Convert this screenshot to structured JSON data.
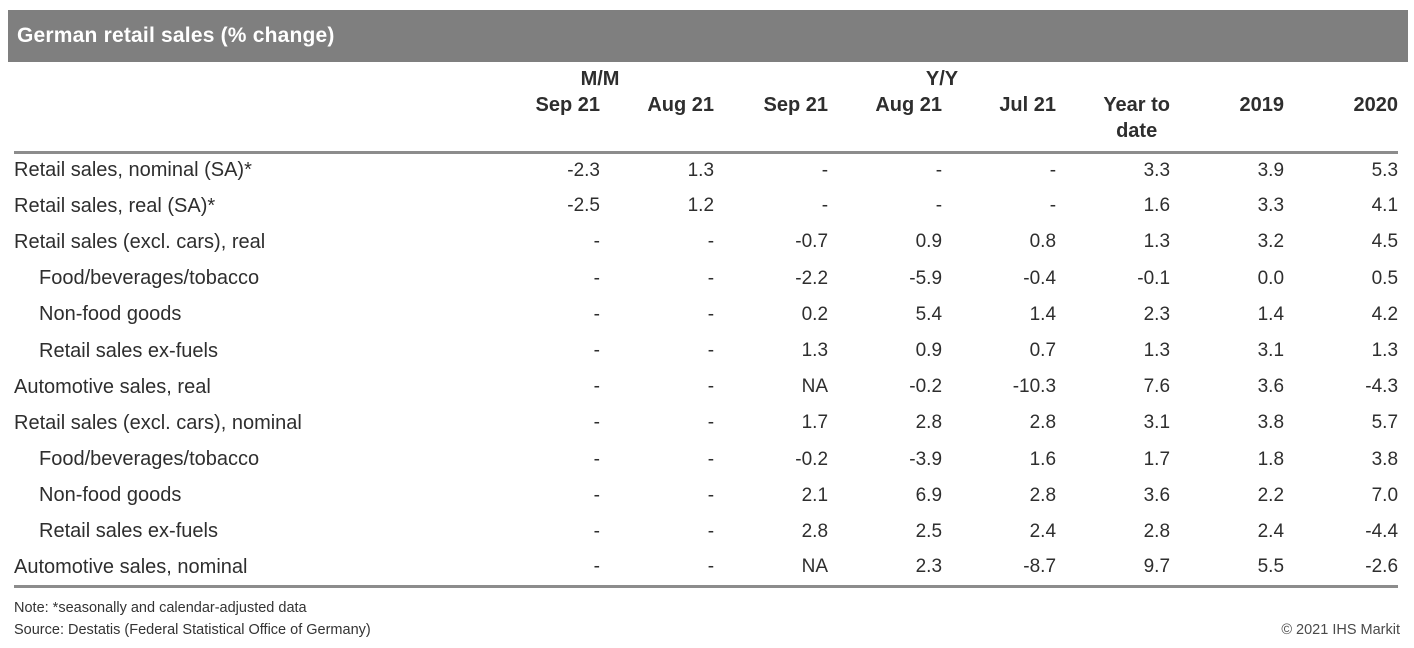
{
  "title": "German retail sales (% change)",
  "colors": {
    "title_bar_bg": "#7f7f7f",
    "title_text": "#ffffff",
    "rule": "#8c8c8c",
    "body_text": "#2e2e2e"
  },
  "chart_data": {
    "type": "table",
    "title": "German retail sales (% change)",
    "column_groups": [
      {
        "label": "M/M",
        "span": 2
      },
      {
        "label": "Y/Y",
        "span": 4
      }
    ],
    "columns": [
      {
        "group": "M/M",
        "label": "Sep 21"
      },
      {
        "group": "M/M",
        "label": "Aug 21"
      },
      {
        "group": "Y/Y",
        "label": "Sep 21"
      },
      {
        "group": "Y/Y",
        "label": "Aug 21"
      },
      {
        "group": "Y/Y",
        "label": "Jul 21"
      },
      {
        "group": "Y/Y",
        "label": "Year to date",
        "wrap": [
          "Year to",
          "date"
        ]
      },
      {
        "group": "",
        "label": "2019"
      },
      {
        "group": "",
        "label": "2020"
      }
    ],
    "rows": [
      {
        "label": "Retail sales, nominal (SA)*",
        "indent": false,
        "values": [
          "-2.3",
          "1.3",
          "-",
          "-",
          "-",
          "3.3",
          "3.9",
          "5.3"
        ]
      },
      {
        "label": "Retail sales, real (SA)*",
        "indent": false,
        "values": [
          "-2.5",
          "1.2",
          "-",
          "-",
          "-",
          "1.6",
          "3.3",
          "4.1"
        ]
      },
      {
        "label": "Retail sales (excl. cars), real",
        "indent": false,
        "values": [
          "-",
          "-",
          "-0.7",
          "0.9",
          "0.8",
          "1.3",
          "3.2",
          "4.5"
        ]
      },
      {
        "label": "Food/beverages/tobacco",
        "indent": true,
        "values": [
          "-",
          "-",
          "-2.2",
          "-5.9",
          "-0.4",
          "-0.1",
          "0.0",
          "0.5"
        ]
      },
      {
        "label": "Non-food goods",
        "indent": true,
        "values": [
          "-",
          "-",
          "0.2",
          "5.4",
          "1.4",
          "2.3",
          "1.4",
          "4.2"
        ]
      },
      {
        "label": "Retail sales ex-fuels",
        "indent": true,
        "values": [
          "-",
          "-",
          "1.3",
          "0.9",
          "0.7",
          "1.3",
          "3.1",
          "1.3"
        ]
      },
      {
        "label": "Automotive sales, real",
        "indent": false,
        "values": [
          "-",
          "-",
          "NA",
          "-0.2",
          "-10.3",
          "7.6",
          "3.6",
          "-4.3"
        ]
      },
      {
        "label": "Retail sales (excl. cars), nominal",
        "indent": false,
        "values": [
          "-",
          "-",
          "1.7",
          "2.8",
          "2.8",
          "3.1",
          "3.8",
          "5.7"
        ]
      },
      {
        "label": "Food/beverages/tobacco",
        "indent": true,
        "values": [
          "-",
          "-",
          "-0.2",
          "-3.9",
          "1.6",
          "1.7",
          "1.8",
          "3.8"
        ]
      },
      {
        "label": "Non-food goods",
        "indent": true,
        "values": [
          "-",
          "-",
          "2.1",
          "6.9",
          "2.8",
          "3.6",
          "2.2",
          "7.0"
        ]
      },
      {
        "label": "Retail sales ex-fuels",
        "indent": true,
        "values": [
          "-",
          "-",
          "2.8",
          "2.5",
          "2.4",
          "2.8",
          "2.4",
          "-4.4"
        ]
      },
      {
        "label": "Automotive sales, nominal",
        "indent": false,
        "values": [
          "-",
          "-",
          "NA",
          "2.3",
          "-8.7",
          "9.7",
          "5.5",
          "-2.6"
        ]
      }
    ]
  },
  "footer": {
    "note": "Note: *seasonally and calendar-adjusted data",
    "source": "Source: Destatis (Federal Statistical Office of Germany)",
    "copyright": "© 2021 IHS Markit"
  }
}
